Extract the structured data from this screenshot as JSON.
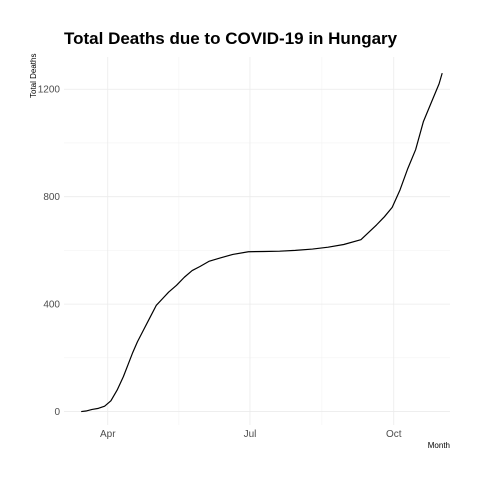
{
  "chart_data": {
    "type": "line",
    "title": "Total Deaths due to COVID-19 in Hungary",
    "xlabel": "Month",
    "ylabel": "Total Deaths",
    "x_ticks": [
      {
        "label": "Apr",
        "date": "2020-04-01"
      },
      {
        "label": "Jul",
        "date": "2020-07-01"
      },
      {
        "label": "Oct",
        "date": "2020-10-01"
      }
    ],
    "y_ticks": [
      0,
      400,
      800,
      1200
    ],
    "xlim": [
      "2020-03-04",
      "2020-11-06"
    ],
    "ylim": [
      -50,
      1320
    ],
    "series": [
      {
        "name": "Total Deaths",
        "x": [
          "2020-03-15",
          "2020-03-18",
          "2020-03-22",
          "2020-03-26",
          "2020-03-30",
          "2020-04-03",
          "2020-04-07",
          "2020-04-11",
          "2020-04-14",
          "2020-04-17",
          "2020-04-20",
          "2020-04-24",
          "2020-04-28",
          "2020-05-02",
          "2020-05-06",
          "2020-05-10",
          "2020-05-15",
          "2020-05-20",
          "2020-05-25",
          "2020-05-30",
          "2020-06-05",
          "2020-06-12",
          "2020-06-20",
          "2020-06-30",
          "2020-07-10",
          "2020-07-20",
          "2020-07-30",
          "2020-08-10",
          "2020-08-20",
          "2020-08-30",
          "2020-09-10",
          "2020-09-20",
          "2020-09-25",
          "2020-09-30",
          "2020-10-05",
          "2020-10-10",
          "2020-10-15",
          "2020-10-20",
          "2020-10-25",
          "2020-10-30",
          "2020-11-01"
        ],
        "values": [
          0,
          2,
          8,
          12,
          20,
          40,
          80,
          130,
          175,
          220,
          260,
          305,
          350,
          395,
          420,
          445,
          470,
          500,
          525,
          540,
          560,
          572,
          585,
          595,
          596,
          597,
          600,
          605,
          612,
          622,
          640,
          695,
          725,
          760,
          825,
          905,
          975,
          1080,
          1150,
          1220,
          1260
        ]
      }
    ]
  }
}
